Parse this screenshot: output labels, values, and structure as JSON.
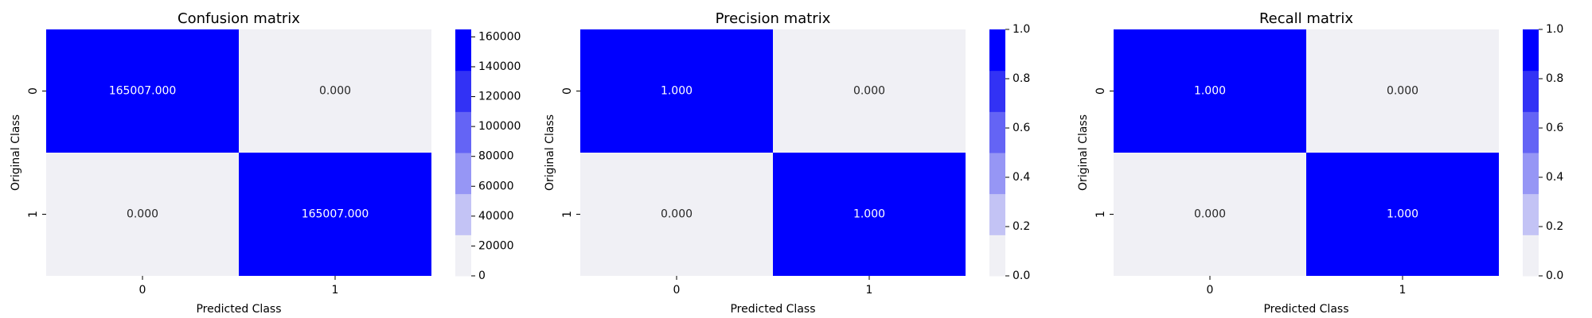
{
  "colors": {
    "background": "#ffffff",
    "text": "#000000",
    "annotation_on_dark": "#ffffff",
    "annotation_on_light": "#262626",
    "colormap": [
      "#f0f0f5",
      "#c3c3f5",
      "#9696f5",
      "#6464f5",
      "#3232f5",
      "#0000ff"
    ]
  },
  "chart_data": [
    {
      "type": "heatmap",
      "title": "Confusion matrix",
      "xlabel": "Predicted Class",
      "ylabel": "Original Class",
      "x_categories": [
        "0",
        "1"
      ],
      "y_categories": [
        "0",
        "1"
      ],
      "values": [
        [
          165007,
          0
        ],
        [
          0,
          165007
        ]
      ],
      "annotations": [
        [
          "165007.000",
          "0.000"
        ],
        [
          "0.000",
          "165007.000"
        ]
      ],
      "colorbar": {
        "range": [
          0,
          165007
        ],
        "ticks": [
          0,
          20000,
          40000,
          60000,
          80000,
          100000,
          120000,
          140000,
          160000
        ],
        "tick_labels": [
          "0",
          "20000",
          "40000",
          "60000",
          "80000",
          "100000",
          "120000",
          "140000",
          "160000"
        ]
      }
    },
    {
      "type": "heatmap",
      "title": "Precision matrix",
      "xlabel": "Predicted Class",
      "ylabel": "Original Class",
      "x_categories": [
        "0",
        "1"
      ],
      "y_categories": [
        "0",
        "1"
      ],
      "values": [
        [
          1.0,
          0.0
        ],
        [
          0.0,
          1.0
        ]
      ],
      "annotations": [
        [
          "1.000",
          "0.000"
        ],
        [
          "0.000",
          "1.000"
        ]
      ],
      "colorbar": {
        "range": [
          0,
          1
        ],
        "ticks": [
          0,
          0.2,
          0.4,
          0.6,
          0.8,
          1.0
        ],
        "tick_labels": [
          "0.0",
          "0.2",
          "0.4",
          "0.6",
          "0.8",
          "1.0"
        ]
      }
    },
    {
      "type": "heatmap",
      "title": "Recall matrix",
      "xlabel": "Predicted Class",
      "ylabel": "Original Class",
      "x_categories": [
        "0",
        "1"
      ],
      "y_categories": [
        "0",
        "1"
      ],
      "values": [
        [
          1.0,
          0.0
        ],
        [
          0.0,
          1.0
        ]
      ],
      "annotations": [
        [
          "1.000",
          "0.000"
        ],
        [
          "0.000",
          "1.000"
        ]
      ],
      "colorbar": {
        "range": [
          0,
          1
        ],
        "ticks": [
          0,
          0.2,
          0.4,
          0.6,
          0.8,
          1.0
        ],
        "tick_labels": [
          "0.0",
          "0.2",
          "0.4",
          "0.6",
          "0.8",
          "1.0"
        ]
      }
    }
  ]
}
